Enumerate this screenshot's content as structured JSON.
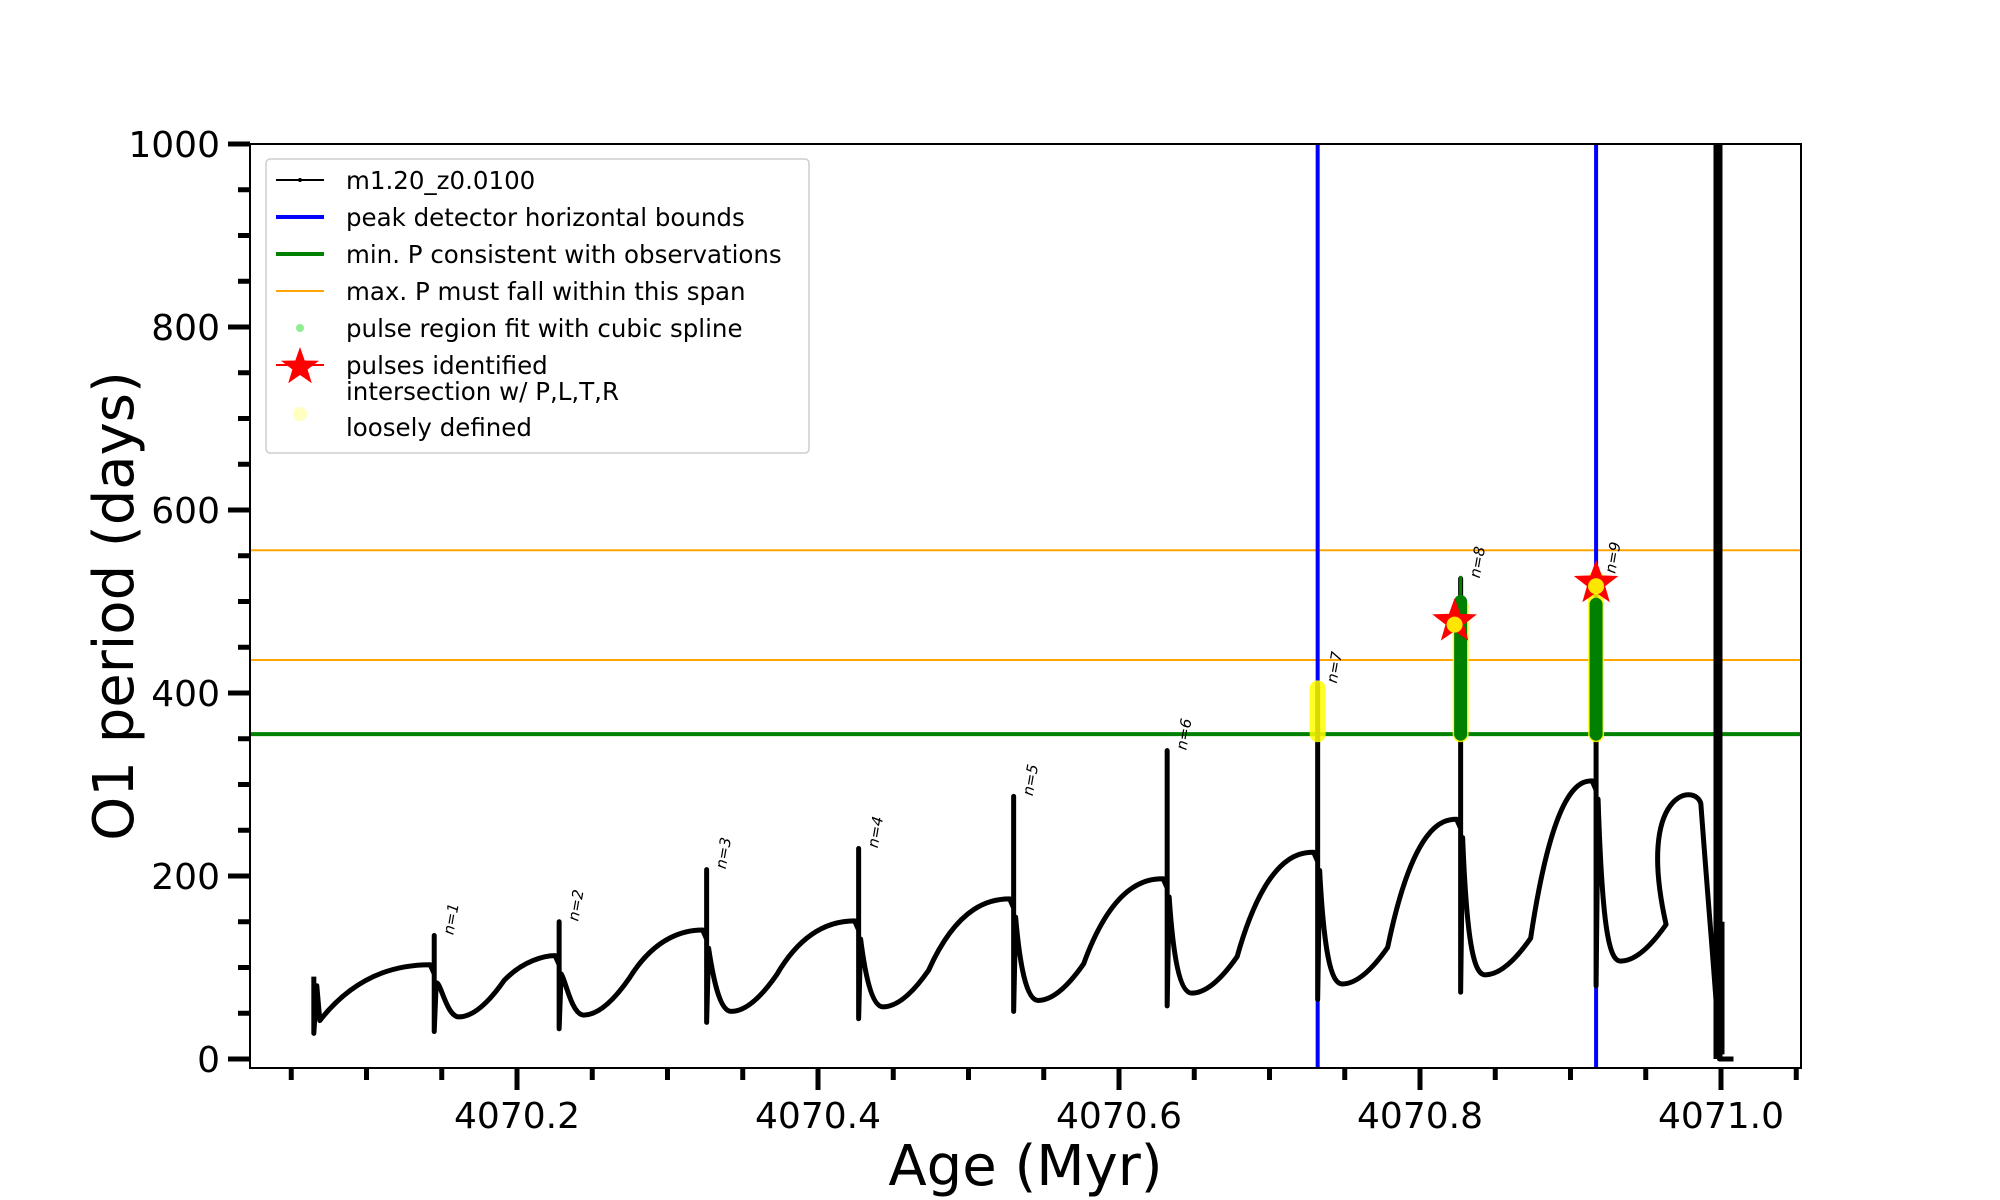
{
  "chart_data": {
    "type": "line",
    "title": "",
    "xlabel": "Age (Myr)",
    "ylabel": "O1 period (days)",
    "xlim": [
      4070.0226,
      4071.053
    ],
    "ylim": [
      -10,
      1000
    ],
    "x_ticks": [
      4070.2,
      4070.4,
      4070.6,
      4070.8,
      4071.0
    ],
    "x_tick_labels": [
      "4070.2",
      "4070.4",
      "4070.6",
      "4070.8",
      "4071.0"
    ],
    "x_minor_step": 0.05,
    "y_ticks": [
      0,
      200,
      400,
      600,
      800,
      1000
    ],
    "y_tick_labels": [
      "0",
      "200",
      "400",
      "600",
      "800",
      "1000"
    ],
    "y_minor_step": 50,
    "grid": false,
    "legend_position": "top-left",
    "legend": [
      {
        "label": "m1.20_z0.0100",
        "kind": "line-dot",
        "color": "#000000"
      },
      {
        "label": "peak detector horizontal bounds",
        "kind": "line-thick",
        "color": "#0000ff"
      },
      {
        "label": "min. P consistent with observations",
        "kind": "line-thick",
        "color": "#008000"
      },
      {
        "label": "max. P must fall within this span",
        "kind": "line-thin",
        "color": "#ffa500"
      },
      {
        "label": "pulse region fit with cubic spline",
        "kind": "dot",
        "color": "#90ee90"
      },
      {
        "label": "pulses identified",
        "kind": "star",
        "color": "#ff0000"
      },
      {
        "label": "intersection w/ P,L,T,R",
        "label2": "loosely defined",
        "kind": "circle",
        "color": "#ffffc0"
      }
    ],
    "series_name": "m1.20_z0.0100",
    "start": {
      "age": 4070.065,
      "low": 28,
      "high": 90,
      "after": 42
    },
    "cycles": [
      {
        "n": "n=1",
        "age": 4070.145,
        "pre_peak": 103,
        "spike_top": 135,
        "spike_bottom": 30,
        "trough": 46
      },
      {
        "n": "n=2",
        "age": 4070.228,
        "pre_peak": 113,
        "spike_top": 150,
        "spike_bottom": 33,
        "trough": 48
      },
      {
        "n": "n=3",
        "age": 4070.326,
        "pre_peak": 141,
        "spike_top": 207,
        "spike_bottom": 40,
        "trough": 52
      },
      {
        "n": "n=4",
        "age": 4070.427,
        "pre_peak": 151,
        "spike_top": 230,
        "spike_bottom": 44,
        "trough": 57
      },
      {
        "n": "n=5",
        "age": 4070.53,
        "pre_peak": 175,
        "spike_top": 287,
        "spike_bottom": 52,
        "trough": 64
      },
      {
        "n": "n=6",
        "age": 4070.632,
        "pre_peak": 197,
        "spike_top": 337,
        "spike_bottom": 58,
        "trough": 72
      },
      {
        "n": "n=7",
        "age": 4070.732,
        "pre_peak": 226,
        "spike_top": 410,
        "spike_bottom": 65,
        "trough": 82
      },
      {
        "n": "n=8",
        "age": 4070.827,
        "pre_peak": 262,
        "spike_top": 525,
        "spike_bottom": 73,
        "trough": 92
      },
      {
        "n": "n=9",
        "age": 4070.917,
        "pre_peak": 304,
        "spike_top": 530,
        "spike_bottom": 80,
        "trough": 107
      }
    ],
    "final_hump": {
      "peak_age": 4070.97,
      "peak": 294,
      "end_age": 4070.999,
      "end": 0
    },
    "terminal_spike": {
      "age": 4070.998,
      "top": 1000,
      "bottom": 0
    },
    "min_P": 355,
    "max_P_span": [
      436,
      556
    ],
    "peak_bounds": [
      4070.732,
      4070.917
    ],
    "spline_regions": [
      {
        "age": 4070.827,
        "from": 355,
        "to": 500
      },
      {
        "age": 4070.917,
        "from": 355,
        "to": 497
      }
    ],
    "loose_intersections": [
      {
        "age": 4070.732,
        "from": 355,
        "to": 405
      },
      {
        "age": 4070.827,
        "from": 355,
        "to": 495
      },
      {
        "age": 4070.917,
        "from": 355,
        "to": 525
      }
    ],
    "pulses_identified": [
      {
        "age": 4070.823,
        "P": 478
      },
      {
        "age": 4070.917,
        "P": 520
      }
    ],
    "colors": {
      "curve": "#000000",
      "bounds": "#0000ff",
      "minP": "#008000",
      "maxP": "#ffa500",
      "spline": "#008000",
      "star": "#ff0000",
      "intersection": "#ffff00"
    }
  }
}
